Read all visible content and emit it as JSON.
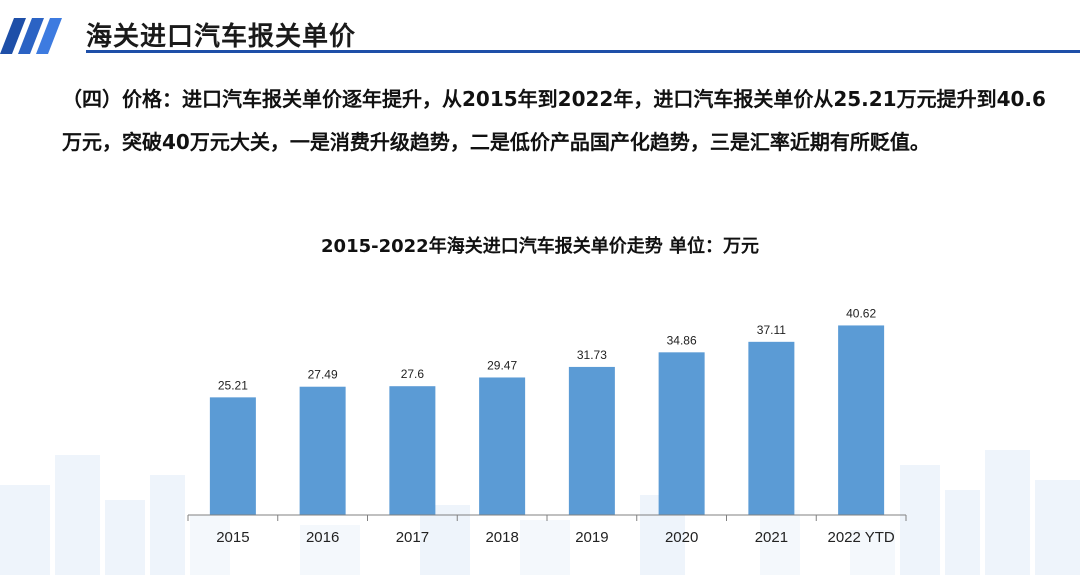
{
  "header": {
    "title": "海关进口汽车报关单价"
  },
  "body": {
    "text": "（四）价格：进口汽车报关单价逐年提升，从2015年到2022年，进口汽车报关单价从25.21万元提升到40.6万元，突破40万元大关，一是消费升级趋势，二是低价产品国产化趋势，三是汇率近期有所贬值。"
  },
  "colors": {
    "bar": "#5b9bd5",
    "accent": "#1e4fa8",
    "axis": "#808080"
  },
  "chart_data": {
    "type": "bar",
    "title": "2015-2022年海关进口汽车报关单价走势  单位：万元",
    "categories": [
      "2015",
      "2016",
      "2017",
      "2018",
      "2019",
      "2020",
      "2021",
      "2022 YTD"
    ],
    "values": [
      25.21,
      27.49,
      27.6,
      29.47,
      31.73,
      34.86,
      37.11,
      40.62
    ],
    "value_labels": [
      "25.21",
      "27.49",
      "27.6",
      "29.47",
      "31.73",
      "34.86",
      "37.11",
      "40.62"
    ],
    "ylim": [
      0,
      45
    ],
    "grid": false,
    "legend": "none"
  }
}
